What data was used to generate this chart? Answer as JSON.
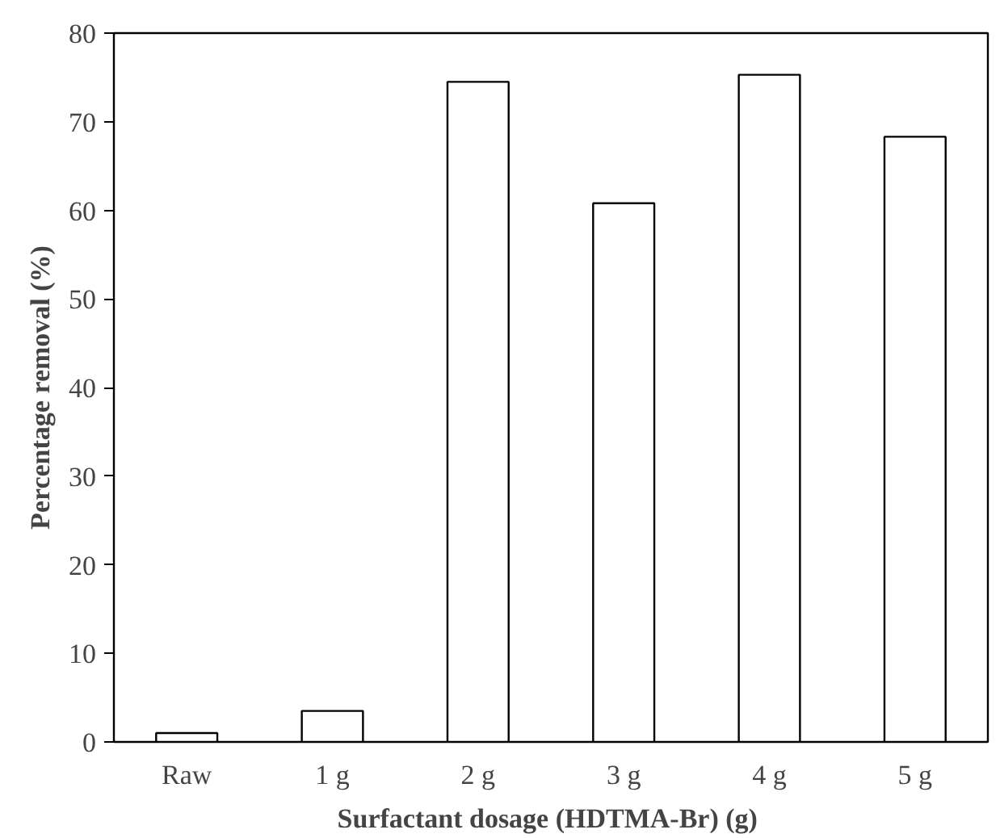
{
  "chart_data": {
    "type": "bar",
    "xlabel": "Surfactant  dosage (HDTMA-Br) (g)",
    "ylabel": "Percentage removal (%)",
    "categories": [
      "Raw",
      "1 g",
      "2 g",
      "3 g",
      "4 g",
      "5 g"
    ],
    "values": [
      1.0,
      3.5,
      74.5,
      60.8,
      75.3,
      68.3
    ],
    "color": "#ffffff",
    "ylim": [
      0,
      80
    ],
    "yticks": [
      0,
      10,
      20,
      30,
      40,
      50,
      60,
      70,
      80
    ],
    "grid": false
  }
}
